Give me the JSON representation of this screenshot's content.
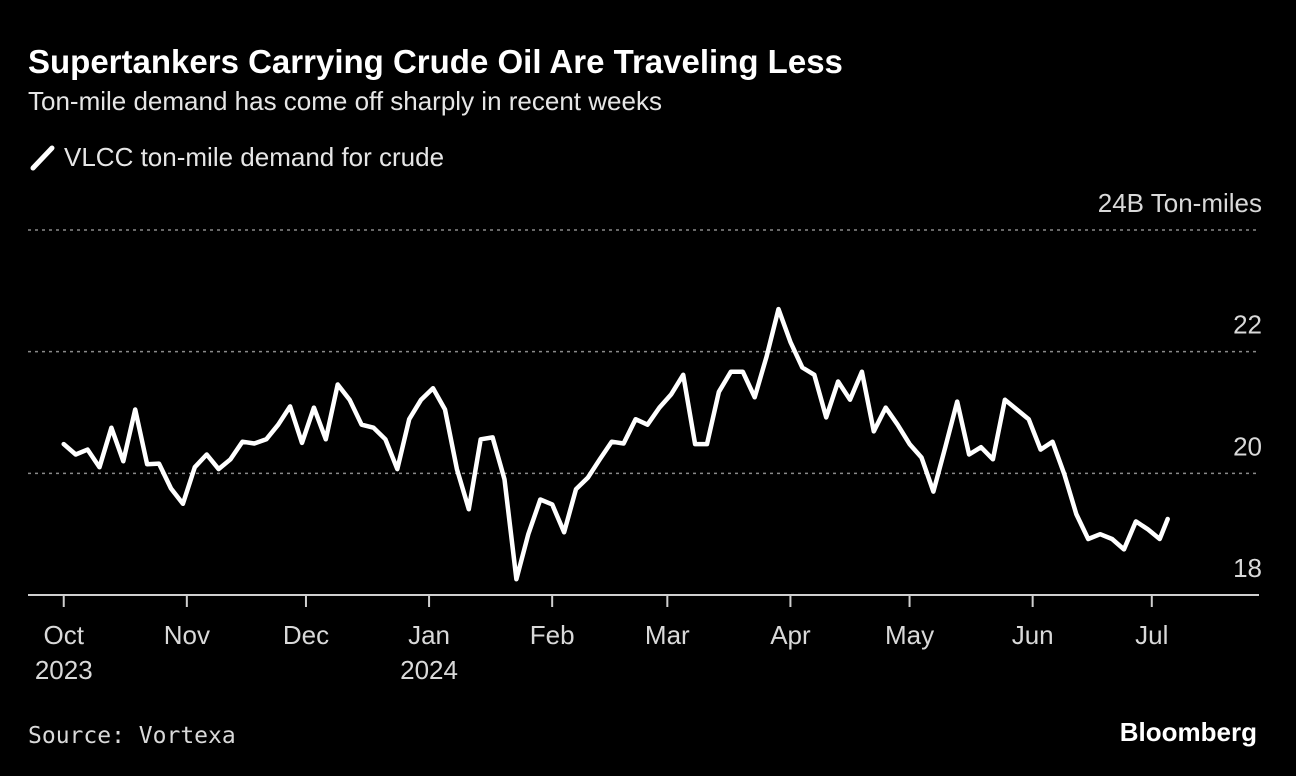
{
  "chart_data": {
    "type": "line",
    "title": "Supertankers Carrying Crude Oil Are Traveling Less",
    "subtitle": "Ton-mile demand has come off sharply in recent weeks",
    "source": "Source: Vortexa",
    "brand": "Bloomberg",
    "x": [
      "2023-10-01",
      "2023-10-04",
      "2023-10-07",
      "2023-10-10",
      "2023-10-13",
      "2023-10-16",
      "2023-10-19",
      "2023-10-22",
      "2023-10-25",
      "2023-10-28",
      "2023-10-31",
      "2023-11-03",
      "2023-11-06",
      "2023-11-09",
      "2023-11-12",
      "2023-11-15",
      "2023-11-18",
      "2023-11-21",
      "2023-11-24",
      "2023-11-27",
      "2023-11-30",
      "2023-12-03",
      "2023-12-06",
      "2023-12-09",
      "2023-12-12",
      "2023-12-15",
      "2023-12-18",
      "2023-12-21",
      "2023-12-24",
      "2023-12-27",
      "2023-12-30",
      "2024-01-02",
      "2024-01-05",
      "2024-01-08",
      "2024-01-11",
      "2024-01-14",
      "2024-01-17",
      "2024-01-20",
      "2024-01-23",
      "2024-01-26",
      "2024-01-29",
      "2024-02-01",
      "2024-02-04",
      "2024-02-07",
      "2024-02-10",
      "2024-02-13",
      "2024-02-16",
      "2024-02-19",
      "2024-02-22",
      "2024-02-25",
      "2024-02-28",
      "2024-03-02",
      "2024-03-05",
      "2024-03-08",
      "2024-03-11",
      "2024-03-14",
      "2024-03-17",
      "2024-03-20",
      "2024-03-23",
      "2024-03-26",
      "2024-03-29",
      "2024-04-01",
      "2024-04-04",
      "2024-04-07",
      "2024-04-10",
      "2024-04-13",
      "2024-04-16",
      "2024-04-19",
      "2024-04-22",
      "2024-04-25",
      "2024-04-28",
      "2024-05-01",
      "2024-05-04",
      "2024-05-07",
      "2024-05-10",
      "2024-05-13",
      "2024-05-16",
      "2024-05-19",
      "2024-05-22",
      "2024-05-25",
      "2024-05-28",
      "2024-05-31",
      "2024-06-03",
      "2024-06-06",
      "2024-06-09",
      "2024-06-12",
      "2024-06-15",
      "2024-06-18",
      "2024-06-21",
      "2024-06-24",
      "2024-06-27",
      "2024-06-30",
      "2024-07-03",
      "2024-07-05"
    ],
    "series": [
      {
        "name": "VLCC ton-mile demand for crude",
        "color": "#ffffff",
        "values": [
          20.48,
          20.31,
          20.39,
          20.1,
          20.75,
          20.2,
          21.05,
          20.15,
          20.16,
          19.75,
          19.5,
          20.1,
          20.31,
          20.07,
          20.23,
          20.52,
          20.49,
          20.56,
          20.8,
          21.1,
          20.5,
          21.08,
          20.56,
          21.46,
          21.21,
          20.8,
          20.75,
          20.56,
          20.07,
          20.89,
          21.21,
          21.4,
          21.05,
          20.07,
          19.41,
          20.56,
          20.59,
          19.9,
          18.26,
          19.0,
          19.57,
          19.49,
          19.03,
          19.74,
          19.93,
          20.23,
          20.52,
          20.49,
          20.89,
          20.8,
          21.08,
          21.3,
          21.62,
          20.48,
          20.48,
          21.34,
          21.67,
          21.67,
          21.25,
          21.92,
          22.7,
          22.16,
          21.74,
          21.62,
          20.92,
          21.51,
          21.21,
          21.67,
          20.69,
          21.08,
          20.8,
          20.48,
          20.26,
          19.7,
          20.43,
          21.18,
          20.31,
          20.43,
          20.23,
          21.21,
          21.05,
          20.89,
          20.39,
          20.52,
          19.98,
          19.33,
          18.92,
          19.0,
          18.92,
          18.75,
          19.21,
          19.08,
          18.92,
          19.25
        ]
      }
    ],
    "xlim": [
      "2023-09-22",
      "2024-07-28"
    ],
    "xticks": [
      {
        "value": "2023-10-01",
        "label": "Oct",
        "year": "2023"
      },
      {
        "value": "2023-11-01",
        "label": "Nov"
      },
      {
        "value": "2023-12-01",
        "label": "Dec"
      },
      {
        "value": "2024-01-01",
        "label": "Jan",
        "year": "2024"
      },
      {
        "value": "2024-02-01",
        "label": "Feb"
      },
      {
        "value": "2024-03-01",
        "label": "Mar"
      },
      {
        "value": "2024-04-01",
        "label": "Apr"
      },
      {
        "value": "2024-05-01",
        "label": "May"
      },
      {
        "value": "2024-06-01",
        "label": "Jun"
      },
      {
        "value": "2024-07-01",
        "label": "Jul"
      }
    ],
    "ylim": [
      18,
      24
    ],
    "yticks": [
      18,
      20,
      22,
      {
        "value": 24,
        "label": "24B Ton-miles"
      }
    ],
    "grid": true
  }
}
